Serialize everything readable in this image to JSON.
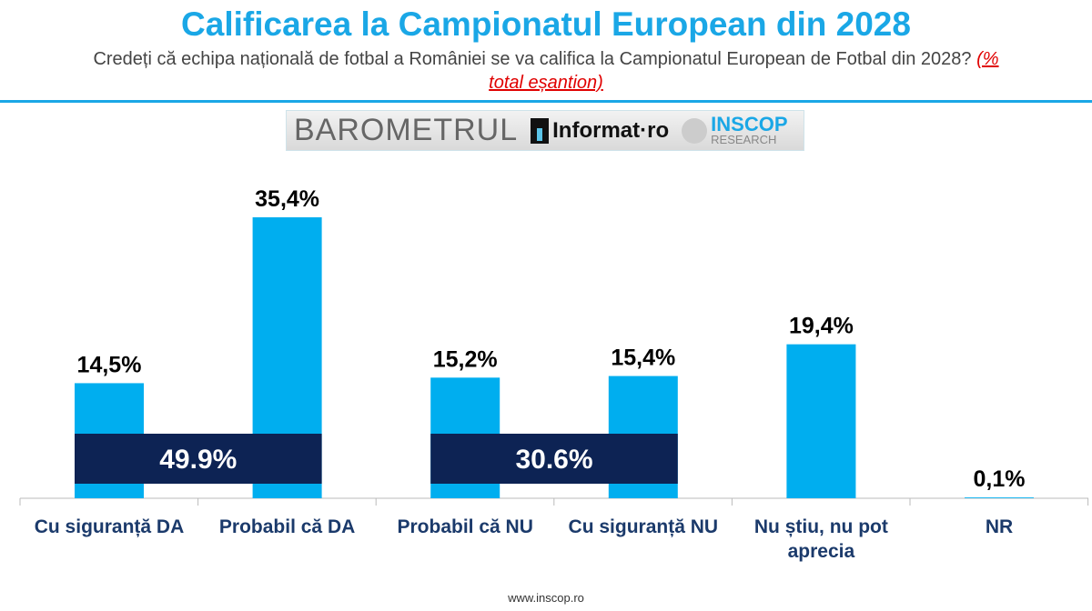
{
  "header": {
    "title": "Calificarea la Campionatul European din 2028",
    "subtitle": "Credeți că echipa națională de fotbal a României se va califica la Campionatul European de Fotbal din 2028?",
    "note": "(% total eșantion)"
  },
  "logo": {
    "text1": "BAROMETRUL",
    "text2": "Informat·ro",
    "text3": "INSCOP",
    "text4": "RESEARCH"
  },
  "footer": "www.inscop.ro",
  "chart_data": {
    "type": "bar",
    "categories": [
      "Cu siguranță DA",
      "Probabil că DA",
      "Probabil că NU",
      "Cu siguranță NU",
      "Nu știu, nu pot aprecia",
      "NR"
    ],
    "values": [
      14.5,
      35.4,
      15.2,
      15.4,
      19.4,
      0.1
    ],
    "data_labels": [
      "14,5%",
      "35,4%",
      "15,2%",
      "15,4%",
      "19,4%",
      "0,1%"
    ],
    "ylim": [
      0,
      40
    ],
    "grid": false,
    "color": "#00aeef",
    "totals": [
      {
        "label": "49.9%",
        "categories": [
          "Cu siguranță DA",
          "Probabil că DA"
        ],
        "color": "#0d2354"
      },
      {
        "label": "30.6%",
        "categories": [
          "Probabil că NU",
          "Cu siguranță NU"
        ],
        "color": "#0d2354"
      }
    ]
  }
}
